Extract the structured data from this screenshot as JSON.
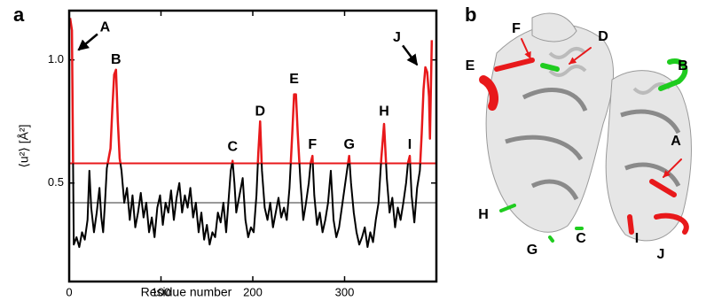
{
  "chart_data": {
    "type": "line",
    "panel_labels": [
      "a",
      "b"
    ],
    "ylabel": "⟨u²⟩ [Å²]",
    "xlabel": "Residue number",
    "xlim": [
      0,
      400
    ],
    "xticks": [
      0,
      100,
      200,
      300
    ],
    "ylim": [
      0.1,
      1.2
    ],
    "yticks": [
      0.5,
      {
        "value": 1,
        "label": "1.0"
      }
    ],
    "hlines": [
      {
        "value": 0.58,
        "color": "#e8191b"
      },
      {
        "value": 0.42,
        "color": "#999999"
      }
    ],
    "series": [
      {
        "color": "#000000",
        "highlight_color": "#e8191b",
        "x": [
          1,
          3,
          5,
          8,
          11,
          14,
          17,
          20,
          22,
          24,
          27,
          30,
          33,
          35,
          37,
          39,
          41,
          43,
          45,
          47,
          49,
          51,
          53,
          55,
          57,
          60,
          63,
          66,
          69,
          72,
          75,
          78,
          81,
          84,
          87,
          90,
          93,
          96,
          99,
          102,
          105,
          108,
          111,
          114,
          117,
          120,
          123,
          126,
          129,
          132,
          135,
          138,
          141,
          144,
          147,
          150,
          153,
          156,
          159,
          162,
          165,
          168,
          171,
          174,
          176,
          178,
          180,
          182,
          184,
          187,
          189,
          192,
          195,
          198,
          201,
          204,
          206,
          208,
          210,
          213,
          216,
          219,
          222,
          225,
          228,
          231,
          234,
          237,
          240,
          243,
          245,
          247,
          249,
          252,
          255,
          258,
          261,
          263,
          265,
          267,
          270,
          273,
          276,
          279,
          282,
          285,
          288,
          291,
          294,
          297,
          300,
          303,
          305,
          307,
          310,
          313,
          316,
          319,
          322,
          325,
          328,
          331,
          334,
          337,
          340,
          343,
          346,
          349,
          352,
          355,
          358,
          361,
          364,
          367,
          369,
          371,
          373,
          376,
          379,
          382,
          384,
          386,
          388,
          390,
          392,
          393,
          395
        ],
        "values": [
          1.17,
          1.12,
          0.25,
          0.28,
          0.24,
          0.3,
          0.27,
          0.35,
          0.55,
          0.4,
          0.3,
          0.38,
          0.48,
          0.36,
          0.3,
          0.42,
          0.56,
          0.6,
          0.64,
          0.8,
          0.94,
          0.96,
          0.75,
          0.6,
          0.55,
          0.42,
          0.48,
          0.35,
          0.45,
          0.32,
          0.38,
          0.46,
          0.36,
          0.42,
          0.3,
          0.36,
          0.28,
          0.4,
          0.45,
          0.33,
          0.42,
          0.38,
          0.47,
          0.35,
          0.44,
          0.5,
          0.38,
          0.45,
          0.4,
          0.48,
          0.36,
          0.42,
          0.3,
          0.38,
          0.27,
          0.33,
          0.25,
          0.3,
          0.28,
          0.38,
          0.34,
          0.42,
          0.3,
          0.45,
          0.55,
          0.59,
          0.5,
          0.38,
          0.42,
          0.48,
          0.52,
          0.35,
          0.28,
          0.32,
          0.3,
          0.45,
          0.62,
          0.75,
          0.55,
          0.4,
          0.35,
          0.42,
          0.32,
          0.38,
          0.44,
          0.36,
          0.4,
          0.35,
          0.48,
          0.7,
          0.86,
          0.86,
          0.7,
          0.5,
          0.35,
          0.42,
          0.5,
          0.58,
          0.61,
          0.45,
          0.33,
          0.38,
          0.3,
          0.35,
          0.42,
          0.55,
          0.35,
          0.28,
          0.32,
          0.4,
          0.48,
          0.56,
          0.61,
          0.5,
          0.38,
          0.3,
          0.25,
          0.28,
          0.32,
          0.24,
          0.3,
          0.26,
          0.35,
          0.42,
          0.6,
          0.74,
          0.52,
          0.38,
          0.44,
          0.32,
          0.4,
          0.35,
          0.42,
          0.5,
          0.58,
          0.61,
          0.45,
          0.34,
          0.48,
          0.55,
          0.7,
          0.88,
          0.97,
          0.95,
          0.85,
          0.68,
          1.08
        ]
      }
    ],
    "annotations": [
      {
        "text": "A",
        "x": 39,
        "y": 1.13,
        "xy": [
          10,
          1.04
        ]
      },
      {
        "text": "B",
        "x": 51,
        "y": 1.0
      },
      {
        "text": "C",
        "x": 178,
        "y": 0.645
      },
      {
        "text": "D",
        "x": 208,
        "y": 0.79
      },
      {
        "text": "E",
        "x": 245,
        "y": 0.92
      },
      {
        "text": "F",
        "x": 265,
        "y": 0.655
      },
      {
        "text": "G",
        "x": 305,
        "y": 0.655
      },
      {
        "text": "H",
        "x": 343,
        "y": 0.79
      },
      {
        "text": "I",
        "x": 371,
        "y": 0.655
      },
      {
        "text": "J",
        "x": 357,
        "y": 1.09,
        "xy": [
          379,
          0.98
        ]
      }
    ],
    "structure_labels": [
      "A",
      "B",
      "C",
      "D",
      "E",
      "F",
      "G",
      "H",
      "I",
      "J"
    ]
  }
}
